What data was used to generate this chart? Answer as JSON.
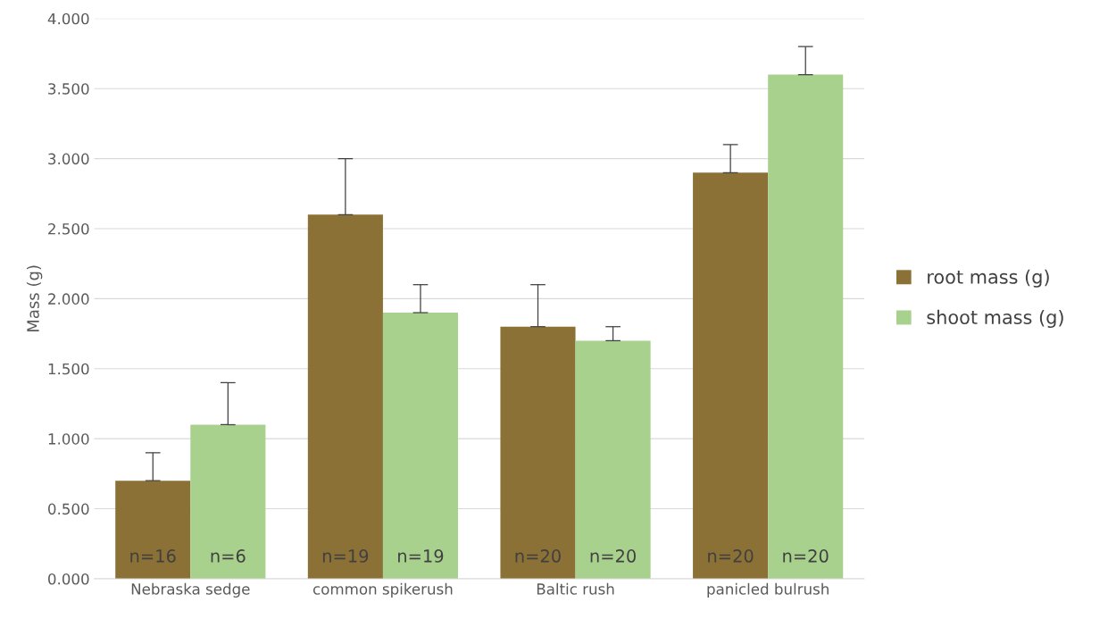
{
  "chart_data": {
    "type": "bar",
    "ylabel": "Mass (g)",
    "categories": [
      "Nebraska sedge",
      "common spikerush",
      "Baltic rush",
      "panicled bulrush"
    ],
    "series": [
      {
        "name": "root mass (g)",
        "color": "#8b7135",
        "values": [
          0.7,
          2.6,
          1.8,
          2.9
        ],
        "errors": [
          [
            0.7,
            0.9
          ],
          [
            2.6,
            3.0
          ],
          [
            1.8,
            2.1
          ],
          [
            2.9,
            3.1
          ]
        ]
      },
      {
        "name": "shoot mass (g)",
        "color": "#a9d18e",
        "values": [
          1.1,
          1.9,
          1.7,
          3.6
        ],
        "errors": [
          [
            1.1,
            1.4
          ],
          [
            1.9,
            2.1
          ],
          [
            1.7,
            1.8
          ],
          [
            3.6,
            3.8
          ]
        ]
      }
    ],
    "annotations": [
      "n=16",
      "n=6",
      "n=19",
      "n=19",
      "n=20",
      "n=20",
      "n=20",
      "n=20"
    ],
    "ylim": [
      0,
      4
    ],
    "yticks": [
      {
        "value": 0,
        "label": "0.000"
      },
      {
        "value": 0.5,
        "label": "0.500"
      },
      {
        "value": 1,
        "label": "1.000"
      },
      {
        "value": 1.5,
        "label": "1.500"
      },
      {
        "value": 2,
        "label": "2.000"
      },
      {
        "value": 2.5,
        "label": "2.500"
      },
      {
        "value": 3,
        "label": "3.000"
      },
      {
        "value": 3.5,
        "label": "3.500"
      },
      {
        "value": 4,
        "label": "4.000"
      }
    ],
    "grid": "y",
    "legend": "right"
  }
}
